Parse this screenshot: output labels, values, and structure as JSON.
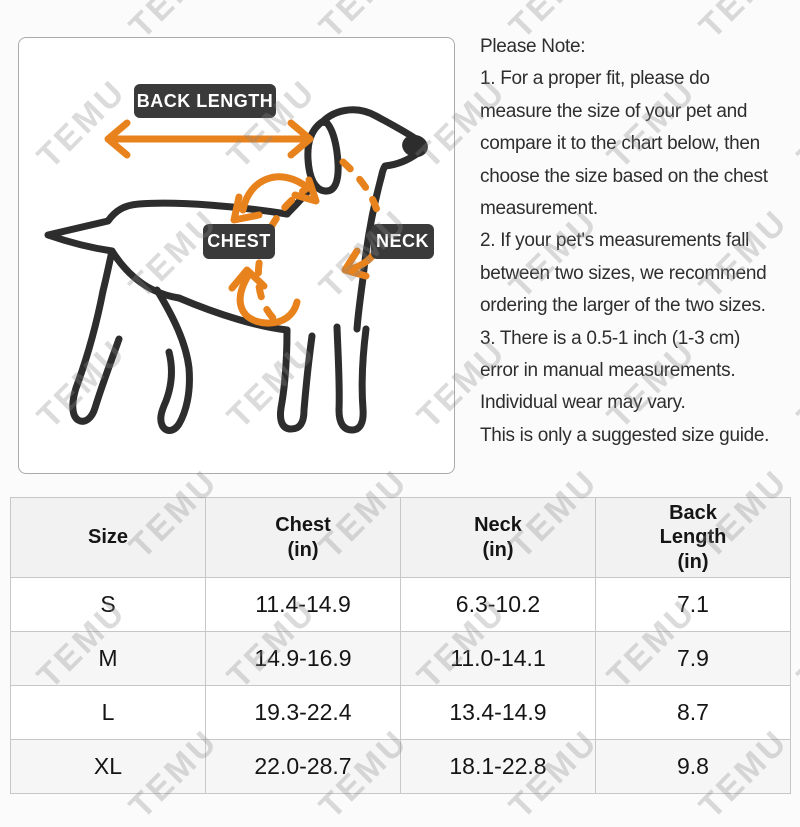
{
  "watermark": {
    "text": "TEMU"
  },
  "colors": {
    "accent_orange": "#E8821D",
    "label_dark": "#3A3A3A",
    "dog_line": "#2D2D2D",
    "table_header_bg": "#F2F2F2",
    "table_alt_row_bg": "#F6F6F6",
    "border_gray": "#C7C7C7"
  },
  "diagram": {
    "labels": {
      "back_length": "BACK LENGTH",
      "chest": "CHEST",
      "neck": "NECK"
    }
  },
  "note": {
    "title": "Please Note:",
    "lines": [
      "1. For a proper fit, please do",
      "measure the size of your pet and",
      "compare it to the chart below, then",
      "choose the size based on the chest",
      "measurement.",
      "2. If your pet's measurements fall",
      "between two sizes, we recommend",
      "ordering the larger of the two sizes.",
      "3. There is a 0.5-1 inch (1-3 cm)",
      "error in manual measurements.",
      "Individual wear may vary.",
      "This is only a suggested size guide."
    ]
  },
  "size_table": {
    "headers": [
      [
        "Size"
      ],
      [
        "Chest",
        "(in)"
      ],
      [
        "Neck",
        "(in)"
      ],
      [
        "Back",
        "Length",
        "(in)"
      ]
    ],
    "rows": [
      [
        "S",
        "11.4-14.9",
        "6.3-10.2",
        "7.1"
      ],
      [
        "M",
        "14.9-16.9",
        "11.0-14.1",
        "7.9"
      ],
      [
        "L",
        "19.3-22.4",
        "13.4-14.9",
        "8.7"
      ],
      [
        "XL",
        "22.0-28.7",
        "18.1-22.8",
        "9.8"
      ]
    ]
  },
  "chart_data": {
    "type": "table",
    "title": "Pet harness size guide",
    "columns": [
      "Size",
      "Chest (in)",
      "Neck (in)",
      "Back Length (in)"
    ],
    "rows": [
      [
        "S",
        "11.4-14.9",
        "6.3-10.2",
        "7.1"
      ],
      [
        "M",
        "14.9-16.9",
        "11.0-14.1",
        "7.9"
      ],
      [
        "L",
        "19.3-22.4",
        "13.4-14.9",
        "8.7"
      ],
      [
        "XL",
        "22.0-28.7",
        "18.1-22.8",
        "9.8"
      ]
    ]
  }
}
